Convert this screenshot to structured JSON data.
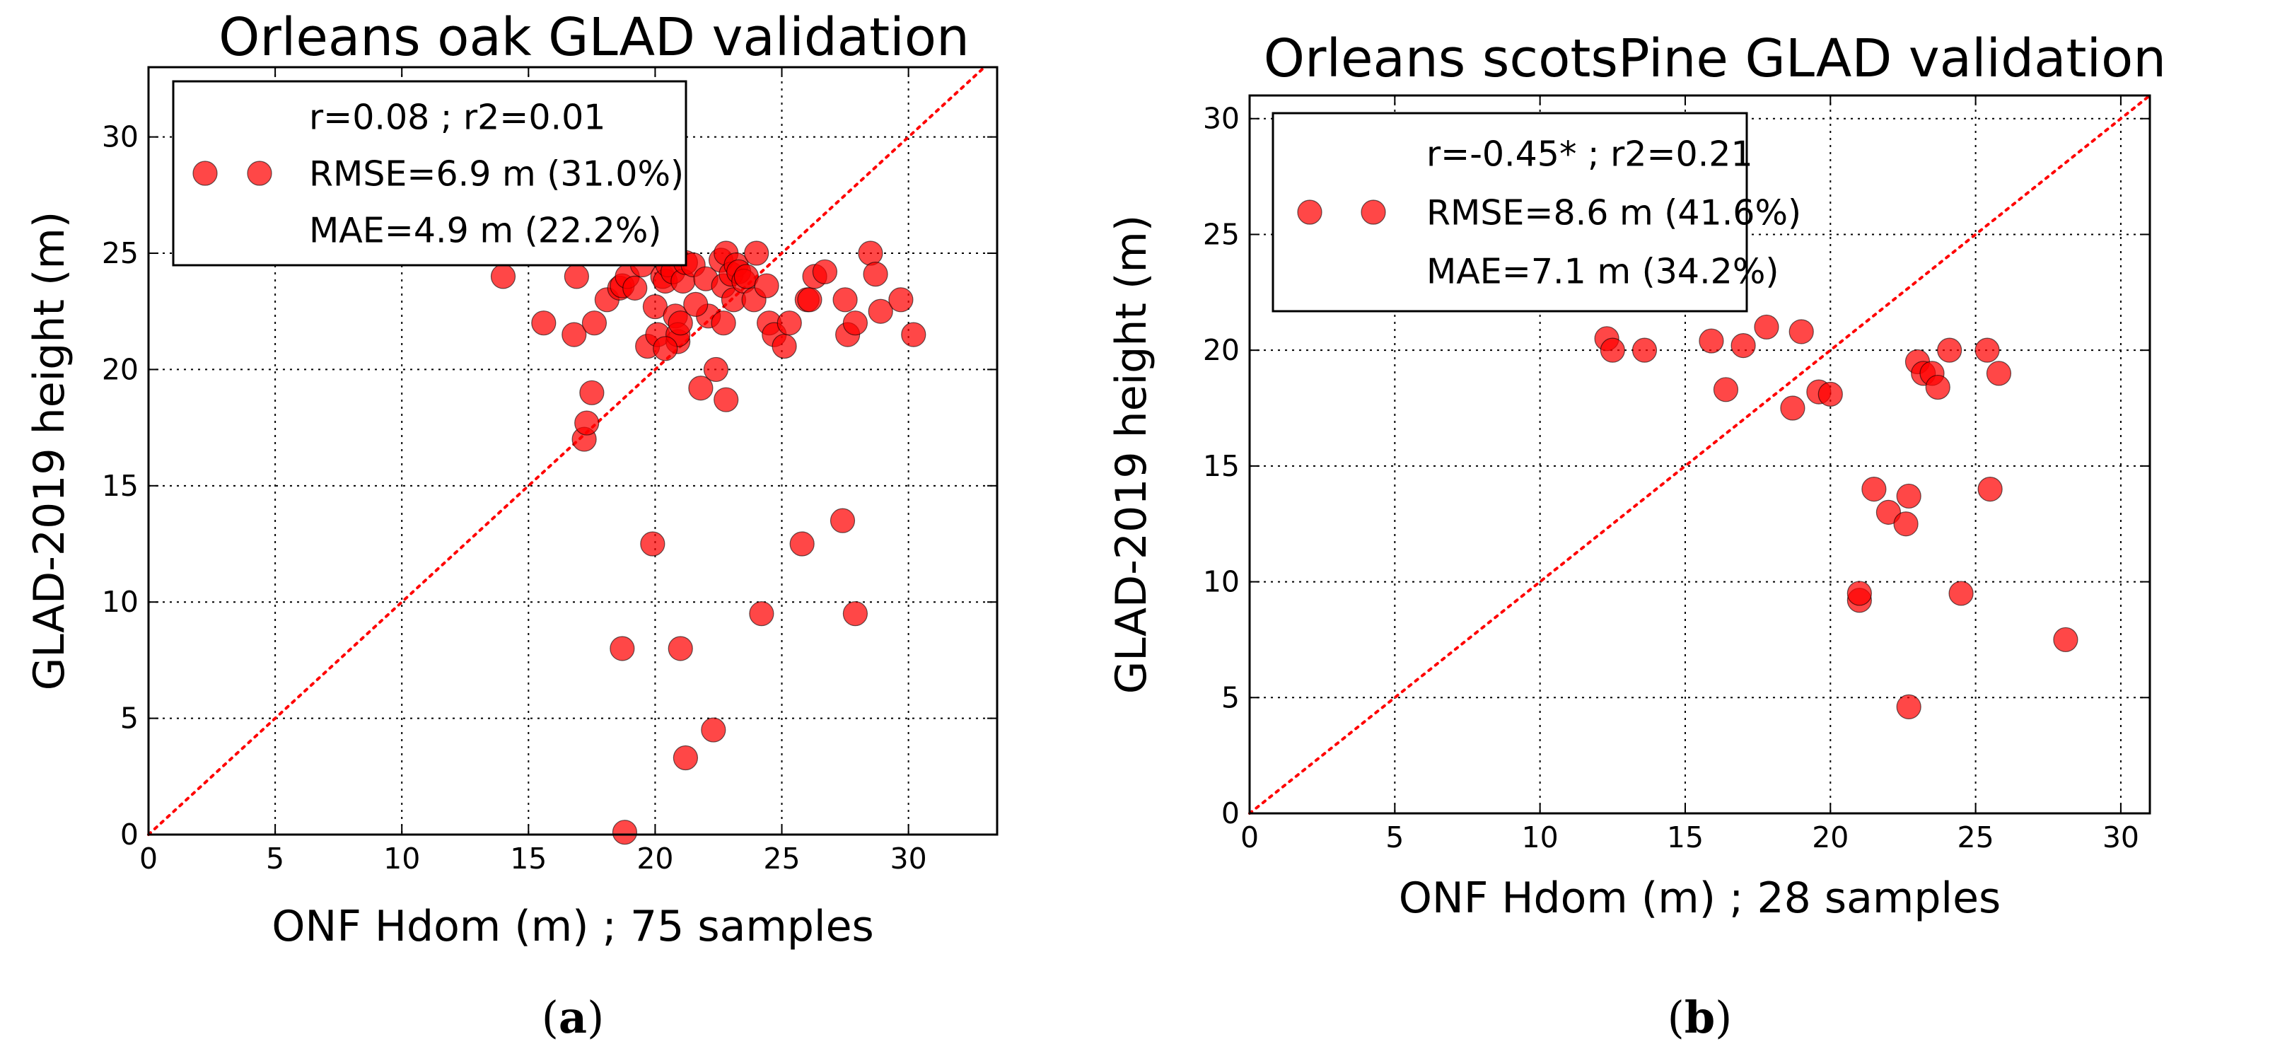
{
  "chart_data": [
    {
      "type": "scatter",
      "title": "Orleans oak GLAD validation",
      "xlabel": "ONF Hdom (m) ; 75 samples",
      "ylabel": "GLAD-2019 height (m)",
      "xlim": [
        0,
        33.5
      ],
      "ylim": [
        0,
        33
      ],
      "xticks": [
        0,
        5,
        10,
        15,
        20,
        25,
        30
      ],
      "yticks": [
        0,
        5,
        10,
        15,
        20,
        25,
        30
      ],
      "grid": true,
      "reference_line": "1:1",
      "legend": {
        "placement": "top-left",
        "lines": [
          "r=0.08 ; r2=0.01",
          "RMSE=6.9 m (31.0%)",
          "MAE=4.9 m (22.2%)"
        ]
      },
      "panel_label": "a",
      "marker_color": "#ff0000",
      "series": [
        {
          "name": "samples",
          "points": [
            [
              14.0,
              24.0
            ],
            [
              15.6,
              22.0
            ],
            [
              16.8,
              21.5
            ],
            [
              16.9,
              24.0
            ],
            [
              17.2,
              17.0
            ],
            [
              17.3,
              17.7
            ],
            [
              17.5,
              19.0
            ],
            [
              17.6,
              22.0
            ],
            [
              18.1,
              23.0
            ],
            [
              18.6,
              23.5
            ],
            [
              18.7,
              23.6
            ],
            [
              18.9,
              24.0
            ],
            [
              18.7,
              8.0
            ],
            [
              18.8,
              0.1
            ],
            [
              19.2,
              23.5
            ],
            [
              19.5,
              24.5
            ],
            [
              19.7,
              21.0
            ],
            [
              19.9,
              12.5
            ],
            [
              20.0,
              22.7
            ],
            [
              20.1,
              21.5
            ],
            [
              20.3,
              24.0
            ],
            [
              20.4,
              23.8
            ],
            [
              20.5,
              24.5
            ],
            [
              20.6,
              25.0
            ],
            [
              20.7,
              24.2
            ],
            [
              20.8,
              22.3
            ],
            [
              20.9,
              21.2
            ],
            [
              20.9,
              21.5
            ],
            [
              21.0,
              22.0
            ],
            [
              21.0,
              8.0
            ],
            [
              21.1,
              23.8
            ],
            [
              21.2,
              24.6
            ],
            [
              21.2,
              3.3
            ],
            [
              21.5,
              24.5
            ],
            [
              21.8,
              19.2
            ],
            [
              22.0,
              23.9
            ],
            [
              22.1,
              22.3
            ],
            [
              22.3,
              4.5
            ],
            [
              22.4,
              20.0
            ],
            [
              22.6,
              24.7
            ],
            [
              22.7,
              22.0
            ],
            [
              22.8,
              18.7
            ],
            [
              22.7,
              23.6
            ],
            [
              22.8,
              25.0
            ],
            [
              23.0,
              24.1
            ],
            [
              23.1,
              23.0
            ],
            [
              23.2,
              24.5
            ],
            [
              23.3,
              24.2
            ],
            [
              23.5,
              23.8
            ],
            [
              23.6,
              24.0
            ],
            [
              23.9,
              23.0
            ],
            [
              24.0,
              25.0
            ],
            [
              24.2,
              9.5
            ],
            [
              24.5,
              22.0
            ],
            [
              24.7,
              21.5
            ],
            [
              25.1,
              21.0
            ],
            [
              25.3,
              22.0
            ],
            [
              25.8,
              12.5
            ],
            [
              26.0,
              23.0
            ],
            [
              26.1,
              23.0
            ],
            [
              26.3,
              24.0
            ],
            [
              26.7,
              24.2
            ],
            [
              27.4,
              13.5
            ],
            [
              27.5,
              23.0
            ],
            [
              27.6,
              21.5
            ],
            [
              27.9,
              22.0
            ],
            [
              27.9,
              9.5
            ],
            [
              28.5,
              25.0
            ],
            [
              28.7,
              24.1
            ],
            [
              28.9,
              22.5
            ],
            [
              29.7,
              23.0
            ],
            [
              30.2,
              21.5
            ],
            [
              21.6,
              22.8
            ],
            [
              20.4,
              20.9
            ],
            [
              24.4,
              23.6
            ]
          ]
        }
      ]
    },
    {
      "type": "scatter",
      "title": "Orleans scotsPine GLAD validation",
      "xlabel": "ONF Hdom (m) ; 28 samples",
      "ylabel": "GLAD-2019 height (m)",
      "xlim": [
        0,
        31
      ],
      "ylim": [
        0,
        31
      ],
      "xticks": [
        0,
        5,
        10,
        15,
        20,
        25,
        30
      ],
      "yticks": [
        0,
        5,
        10,
        15,
        20,
        25,
        30
      ],
      "grid": true,
      "reference_line": "1:1",
      "legend": {
        "placement": "top-left",
        "lines": [
          "r=-0.45* ; r2=0.21",
          "RMSE=8.6 m (41.6%)",
          "MAE=7.1 m (34.2%)"
        ]
      },
      "panel_label": "b",
      "marker_color": "#ff0000",
      "series": [
        {
          "name": "samples",
          "points": [
            [
              12.3,
              20.5
            ],
            [
              12.5,
              20.0
            ],
            [
              13.6,
              20.0
            ],
            [
              15.9,
              20.4
            ],
            [
              16.4,
              18.3
            ],
            [
              17.0,
              20.2
            ],
            [
              17.8,
              21.0
            ],
            [
              18.7,
              17.5
            ],
            [
              19.0,
              20.8
            ],
            [
              19.6,
              18.2
            ],
            [
              20.0,
              18.1
            ],
            [
              21.0,
              9.2
            ],
            [
              21.0,
              9.5
            ],
            [
              21.5,
              14.0
            ],
            [
              22.0,
              13.0
            ],
            [
              22.6,
              12.5
            ],
            [
              22.7,
              13.7
            ],
            [
              22.7,
              4.6
            ],
            [
              23.0,
              19.5
            ],
            [
              23.2,
              19.0
            ],
            [
              23.5,
              19.0
            ],
            [
              23.7,
              18.4
            ],
            [
              24.1,
              20.0
            ],
            [
              24.5,
              9.5
            ],
            [
              25.4,
              20.0
            ],
            [
              25.5,
              14.0
            ],
            [
              25.8,
              19.0
            ],
            [
              28.1,
              7.5
            ]
          ]
        }
      ]
    }
  ]
}
